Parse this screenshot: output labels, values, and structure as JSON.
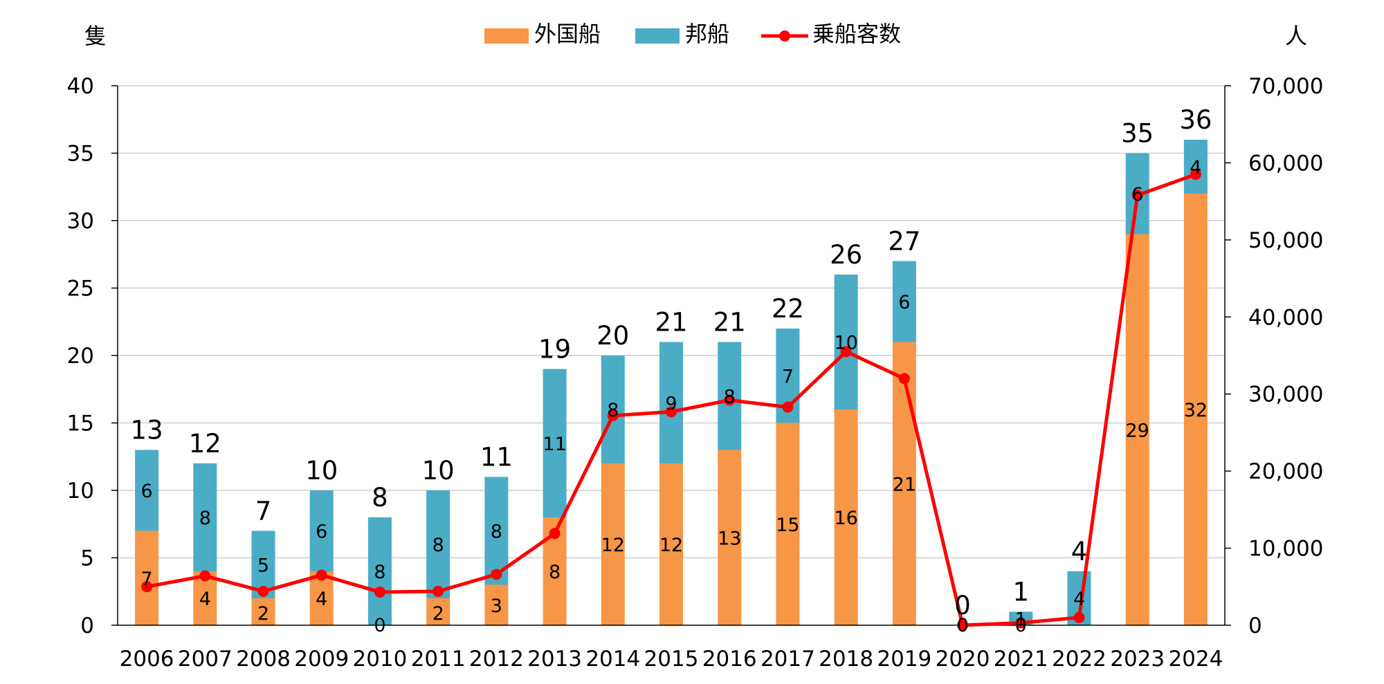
{
  "chart_data": {
    "type": "bar",
    "stacked": true,
    "categories": [
      "2006",
      "2007",
      "2008",
      "2009",
      "2010",
      "2011",
      "2012",
      "2013",
      "2014",
      "2015",
      "2016",
      "2017",
      "2018",
      "2019",
      "2020",
      "2021",
      "2022",
      "2023",
      "2024"
    ],
    "series": [
      {
        "name": "外国船",
        "type": "bar",
        "axis": "left",
        "color": "#F79646",
        "values": [
          7,
          4,
          2,
          4,
          0,
          2,
          3,
          8,
          12,
          12,
          13,
          15,
          16,
          21,
          0,
          0,
          0,
          29,
          32
        ]
      },
      {
        "name": "邦船",
        "type": "bar",
        "axis": "left",
        "color": "#4BACC6",
        "values": [
          6,
          8,
          5,
          6,
          8,
          8,
          8,
          11,
          8,
          9,
          8,
          7,
          10,
          6,
          0,
          1,
          4,
          6,
          4
        ]
      },
      {
        "name": "乗船客数",
        "type": "line",
        "axis": "right",
        "color": "#FF0000",
        "values": [
          5000,
          6400,
          4400,
          6500,
          4300,
          4400,
          6600,
          11900,
          27200,
          27700,
          29200,
          28300,
          35500,
          32000,
          0,
          300,
          1000,
          55800,
          58500
        ]
      }
    ],
    "totals": [
      13,
      12,
      7,
      10,
      8,
      10,
      11,
      19,
      20,
      21,
      21,
      22,
      26,
      27,
      0,
      1,
      4,
      35,
      36
    ],
    "segment_labels": {
      "外国船": [
        "7",
        "4",
        "2",
        "4",
        "0",
        "2",
        "3",
        "8",
        "12",
        "12",
        "13",
        "15",
        "16",
        "21",
        "0",
        "0",
        "",
        "29",
        "32"
      ],
      "邦船": [
        "6",
        "8",
        "5",
        "6",
        "8",
        "8",
        "8",
        "11",
        "8",
        "9",
        "8",
        "7",
        "10",
        "6",
        "",
        "1",
        "4",
        "6",
        "4"
      ]
    },
    "left_axis": {
      "unit": "隻",
      "ylim": [
        0,
        40
      ],
      "ticks": [
        "0",
        "5",
        "10",
        "15",
        "20",
        "25",
        "30",
        "35",
        "40"
      ]
    },
    "right_axis": {
      "unit": "人",
      "ylim": [
        0,
        70000
      ],
      "ticks": [
        "0",
        "10,000",
        "20,000",
        "30,000",
        "40,000",
        "50,000",
        "60,000",
        "70,000"
      ]
    },
    "grid": true,
    "legend_position": "top-center"
  }
}
